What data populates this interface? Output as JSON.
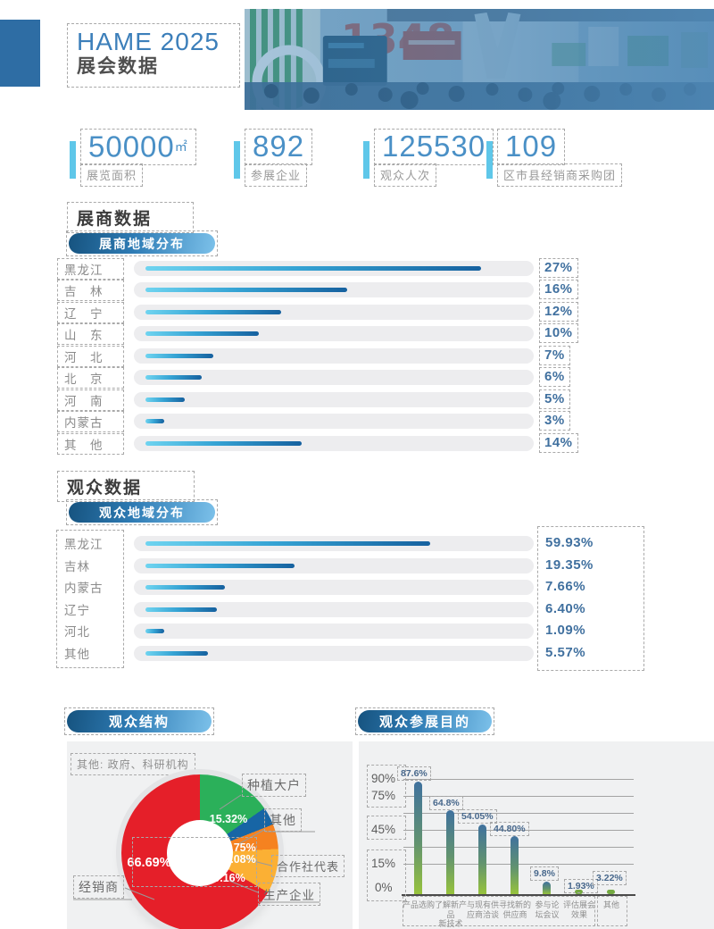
{
  "page": {
    "title": "HAME 2025",
    "subtitle": "展会数据"
  },
  "stats": [
    {
      "value": "50000",
      "unit": "㎡",
      "label": "展览面积"
    },
    {
      "value": "892",
      "unit": "",
      "label": "参展企业"
    },
    {
      "value": "125530",
      "unit": "",
      "label": "观众人次"
    },
    {
      "value": "109",
      "unit": "",
      "label": "区市县经销商采购团"
    }
  ],
  "colors": {
    "accent_blue": "#4a90c6",
    "cyan_bar": "#5fc7e9",
    "pill_gradient_start": "#16537f",
    "pill_gradient_end": "#7cc1ea",
    "hbar_gradient_start": "#6fd4f0",
    "hbar_gradient_end": "#16619f",
    "track_gray": "#ededef",
    "panel_gray": "#f0f1f2",
    "donut_red": "#e51f29",
    "donut_green": "#2bb05a",
    "donut_blue": "#1765a5",
    "donut_orange": "#f58220",
    "donut_yellow": "#fbb034",
    "vbar_top": "#3f719e",
    "vbar_bottom": "#97c33c"
  },
  "exhibitor": {
    "heading": "展商数据",
    "pill": "展商地域分布"
  },
  "visitor": {
    "heading": "观众数据",
    "pill": "观众地域分布"
  },
  "structure": {
    "pill": "观众结构",
    "note": "其他: 政府、科研机构"
  },
  "purpose": {
    "pill": "观众参展目的"
  },
  "chart_data": [
    {
      "id": "exhibitor_region",
      "type": "bar",
      "orientation": "horizontal",
      "title": "展商地域分布",
      "categories": [
        "黑龙江",
        "吉　林",
        "辽　宁",
        "山　东",
        "河　北",
        "北　京",
        "河　南",
        "内蒙古",
        "其　他"
      ],
      "values": [
        27,
        16,
        12,
        10,
        7,
        6,
        5,
        3,
        14
      ],
      "value_labels": [
        "27%",
        "16%",
        "12%",
        "10%",
        "7%",
        "6%",
        "5%",
        "3%",
        "14%"
      ],
      "bar_fractions": [
        0.89,
        0.535,
        0.36,
        0.3,
        0.18,
        0.15,
        0.105,
        0.05,
        0.415
      ],
      "xlim": [
        0,
        30
      ],
      "grid": false,
      "legend": false
    },
    {
      "id": "visitor_region",
      "type": "bar",
      "orientation": "horizontal",
      "title": "观众地域分布",
      "categories": [
        "黑龙江",
        "吉林",
        "内蒙古",
        "辽宁",
        "河北",
        "其他"
      ],
      "values": [
        59.93,
        19.35,
        7.66,
        6.4,
        1.09,
        5.57
      ],
      "value_labels": [
        "59.93%",
        "19.35%",
        "7.66%",
        "6.40%",
        "1.09%",
        "5.57%"
      ],
      "bar_fractions": [
        0.755,
        0.395,
        0.21,
        0.19,
        0.05,
        0.165
      ],
      "xlim": [
        0,
        80
      ],
      "grid": false,
      "legend": false
    },
    {
      "id": "visitor_structure",
      "type": "pie",
      "title": "观众结构",
      "note": "其他: 政府、科研机构",
      "donut_hole": true,
      "start_angle_deg": 0,
      "direction": "clockwise",
      "slices": [
        {
          "label": "种植大户",
          "value": 15.32,
          "pct": "15.32%",
          "color": "#2bb05a"
        },
        {
          "label": "其他",
          "value": 3.75,
          "pct": "3.75%",
          "color": "#1765a5"
        },
        {
          "label": "合作社代表",
          "value": 5.08,
          "pct": "5.08%",
          "color": "#f58220"
        },
        {
          "label": "生产企业",
          "value": 9.16,
          "pct": "9.16%",
          "color": "#fbb034"
        },
        {
          "label": "经销商",
          "value": 66.69,
          "pct": "66.69%",
          "color": "#e51f29"
        }
      ]
    },
    {
      "id": "visit_purpose",
      "type": "bar",
      "orientation": "vertical",
      "title": "观众参展目的",
      "categories": [
        "产品选购",
        "了解新产品新技术",
        "与现有供应商洽谈",
        "寻找新的供应商",
        "参与论坛会议",
        "评估展会效果",
        "其他"
      ],
      "category_lines": [
        [
          "产品选购",
          ""
        ],
        [
          "了解新产品",
          "新技术"
        ],
        [
          "与现有供",
          "应商洽谈"
        ],
        [
          "寻找新的",
          "供应商"
        ],
        [
          "参与论",
          "坛会议"
        ],
        [
          "评估展会",
          "效果"
        ],
        [
          "其他",
          ""
        ]
      ],
      "values": [
        87.6,
        64.8,
        54.05,
        44.8,
        9.8,
        1.93,
        3.22
      ],
      "value_labels": [
        "87.6%",
        "64.8%",
        "54.05%",
        "44.80%",
        "9.8%",
        "1.93%",
        "3.22%"
      ],
      "y_ticks": [
        "90%",
        "75%",
        "45%",
        "15%",
        "0%"
      ],
      "ylim": [
        0,
        90
      ],
      "gridline_step_pct": 15,
      "grid": true,
      "legend": false
    }
  ]
}
